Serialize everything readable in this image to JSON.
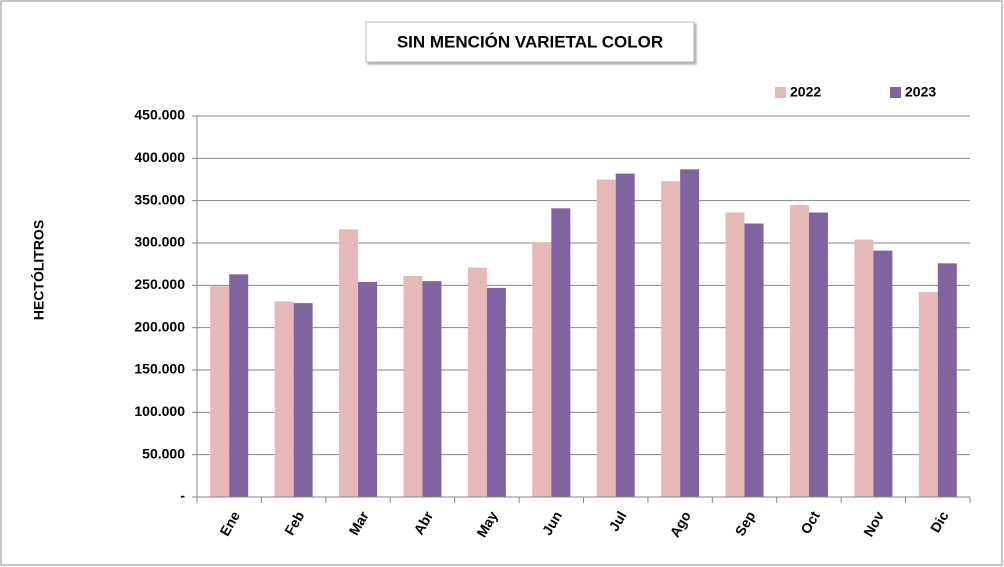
{
  "chart_data": {
    "type": "bar",
    "title": "SIN MENCIÓN VARIETAL COLOR",
    "y_label": "HECTÓLITROS",
    "categories": [
      "Ene",
      "Feb",
      "Mar",
      "Abr",
      "May",
      "Jun",
      "Jul",
      "Ago",
      "Sep",
      "Oct",
      "Nov",
      "Dic"
    ],
    "series": [
      {
        "name": "2022",
        "color": "#e6b9b8",
        "values": [
          249000,
          231000,
          316000,
          261000,
          271000,
          301000,
          375000,
          373000,
          336000,
          345000,
          304000,
          242000
        ]
      },
      {
        "name": "2023",
        "color": "#8064a2",
        "values": [
          263000,
          229000,
          254000,
          255000,
          247000,
          341000,
          382000,
          387000,
          323000,
          336000,
          291000,
          276000
        ]
      }
    ],
    "ylim": [
      0,
      450000
    ],
    "yticks": [
      {
        "value": 0,
        "label": "-"
      },
      {
        "value": 50000,
        "label": "50.000"
      },
      {
        "value": 100000,
        "label": "100.000"
      },
      {
        "value": 150000,
        "label": "150.000"
      },
      {
        "value": 200000,
        "label": "200.000"
      },
      {
        "value": 250000,
        "label": "250.000"
      },
      {
        "value": 300000,
        "label": "300.000"
      },
      {
        "value": 350000,
        "label": "350.000"
      },
      {
        "value": 400000,
        "label": "400.000"
      },
      {
        "value": 450000,
        "label": "450.000"
      }
    ],
    "grid": true
  }
}
